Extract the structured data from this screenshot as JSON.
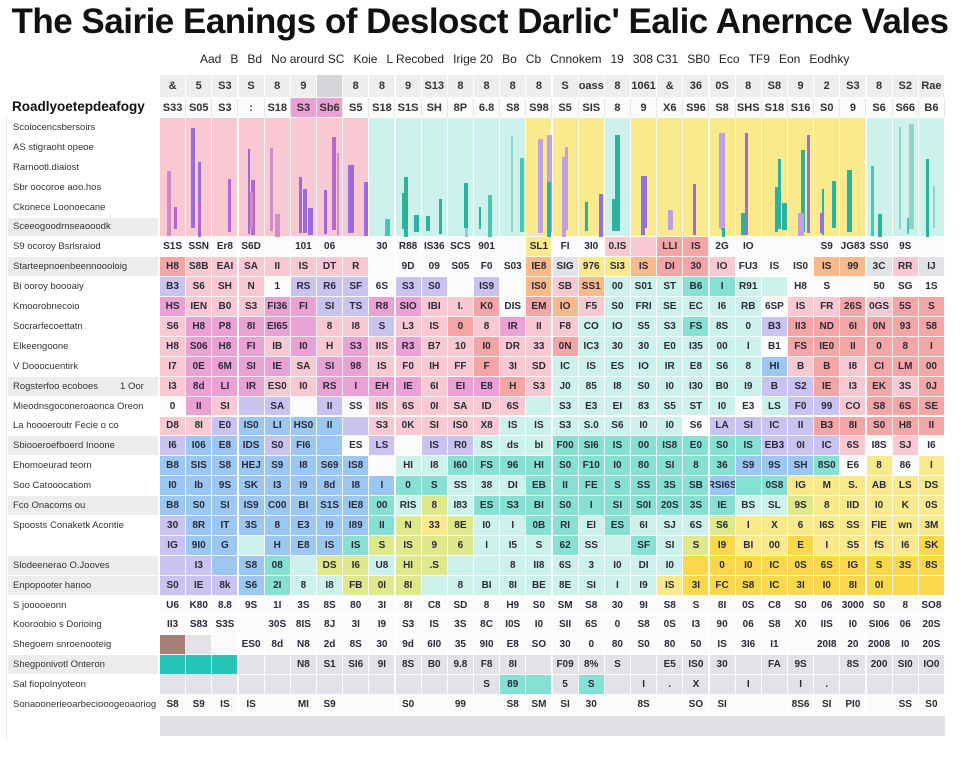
{
  "chart_data": {
    "type": "heatmap",
    "title": "The Sairie Eanings of Deslosct Darlic' Ealic Anernce Vales",
    "subheader": [
      "Aad",
      "B",
      "Bd",
      "No arourd SC",
      "Koie",
      "L Recobed",
      "Irige 20",
      "Bo",
      "Cb",
      "Cnnokem",
      "19",
      "308 C31",
      "SB0",
      "Eco",
      "TF9",
      "Eon",
      "Eodhky"
    ],
    "corner_label": "Roadlyoetepdeafogy",
    "header_row_1": [
      "&",
      "5",
      "S3",
      "S",
      "8",
      "9",
      "",
      "8",
      "8",
      "9",
      "S13",
      "8",
      "8",
      "8",
      "8",
      "S",
      "oass",
      "8",
      "1061",
      "&",
      "36",
      "0S",
      "8",
      "S8",
      "9",
      "2",
      "S3",
      "8",
      "S2",
      "Rae"
    ],
    "header_row_2": [
      "S33",
      "S05",
      "S3",
      ":",
      "S18",
      "S3",
      "Sb6",
      "S5",
      "S18",
      "S1S",
      "SH",
      "8P",
      "6.8",
      "S8",
      "S98",
      "S5",
      "SIS",
      "8",
      "9",
      "X6",
      "S96",
      "S8",
      "SHS",
      "S18",
      "S16",
      "S0",
      "9",
      "S6",
      "S66",
      "B6"
    ],
    "palette": {
      "P": "#f8c9d3",
      "R": "#f4a6a6",
      "M": "#eaa2d4",
      "V": "#c9c3ef",
      "B": "#9cc7f0",
      "C": "#86e0d4",
      "T": "#cdf1eb",
      "Y": "#fbe98e",
      "G": "#f9d84c",
      "L": "#dde98a",
      "W": "#fbfbfb",
      "g": "#e1e3e7",
      "O": "#f8b98c",
      "D": "#27c4ba",
      "K": "#a77f76"
    },
    "band_colors": "PPPPPPPPTTTTTTYYYTYYYYYYYYYTTT",
    "rows": [
      {
        "label": "Scoiocencsbersoirs",
        "shaded": false,
        "colors": "",
        "cells": ""
      },
      {
        "label": "AS stigraoht opeoe",
        "shaded": false,
        "colors": "",
        "cells": ""
      },
      {
        "label": "Rarnootl.diaiost",
        "shaded": false,
        "colors": "",
        "cells": ""
      },
      {
        "label": "Sbr oocoroe aoo.hos",
        "shaded": false,
        "colors": "",
        "cells": ""
      },
      {
        "label": "Ckonece Loonoecane",
        "shaded": false,
        "colors": "",
        "cells": ""
      },
      {
        "label": "Sceeogoodrnseaooodk",
        "shaded": true,
        "colors": "",
        "cells": ""
      },
      {
        "label": "S9 ocoroy Bsrlsraiod",
        "shaded": false,
        "colors": "WWWWWWWWWWWWWWYWWPPRRWWWWWWWWW",
        "cells": "S1S SSN Er8 S6D _ 101 06 _ 30 R88 IS36 SCS 901 _ SL1 FI 3I0 0.IS _ LLI IS 2G IO _ _ S9 JG83 SS0 9S"
      },
      {
        "label": "Starteepnoenbeennoooloig",
        "shaded": true,
        "colors": "RPPPPPPPWWWWWWOgYYORRPWWWOOgPg",
        "cells": "H8 S8B EAI SA II IS DT R _ 9D 09 S05 F0 S03 IE8 SIG 976 SI3 IS DI 30 IO FU3 IS IS0 IS 99 3C RR IJ"
      },
      {
        "label": "Bi ooroy boooaiy",
        "shaded": false,
        "colors": "VPPPWVVVWVVWVWOPOTTTCCTTWWWWWW",
        "cells": "B3 S6 SH N 1 RS R6 SF 6S S3 S0 _ IS9 _ IS0 SB SS1 00 S01 ST B6 I R91 _ H8 S _ 50 SG 1S"
      },
      {
        "label": "Kmoorobnecoio",
        "shaded": false,
        "colors": "MPPPMMVVMMPPRWROPTTTTTTWPPRPRR",
        "cells": "HS IEN B0 S3 FI36 FI SI TS R8 SIO IBI I. K0 DIS EM IO F5 S0 FRI SE EC I6 RB 6SP IS FR 26S 0GS 5S S"
      },
      {
        "label": "Socrarfecoettatn",
        "shaded": false,
        "colors": "PMMMMMPPVPPRPMPPTTTTCTTVRRRRRR",
        "cells": "S6 H8 P8 8I EI65 _ 8 I8 S L3 IS 0 8 IR II F8 CO IO S5 S3 FS 8S 0 B3 II3 ND 6I 0N 93 58"
      },
      {
        "label": "Elkeengoone",
        "shaded": false,
        "colors": "PMMMPMPMPMPPRPPRTTTTTTTWRRRRRR",
        "cells": "H8 S06 H8 FI IB I0 H S3 IIS R3 B7 10 I0 DR 33 0N IC3 30 30 E0 I35 00 I B1 FS IE0 II 0 8 I"
      },
      {
        "label": "V Dooocuentirk",
        "shaded": false,
        "colors": "PMMMMPMMPPPPRPPTTTTTTTTBPRPRRR",
        "cells": "I7 0E 6M SI IE SA SI 98 IS F0 IH FF F 3I SD IC IS ES IO IR E8 S6 8 HI B B I8 CI LM 00"
      },
      {
        "label": "Rogsterfoo ecoboes",
        "shaded": true,
        "extra": "1 Oor",
        "colors": "PMMMPPMMMMPMMRPTTTTTTTTVVRPRPR",
        "cells": "I3 8d LI IR ES0 I0 RS I EH IE 6I EI E8 H S3 J0 85 I8 S0 I0 I30 B0 I9 B S2 IE I3 EK 3S 0J"
      },
      {
        "label": "Mieodnsgoconeroaonca Oreon",
        "shaded": false,
        "colors": "WMPVVWVWPPPPPPTTTTTTTTWTVVPRRR",
        "cells": "0 II SI _ SA _ II SS IIS 6S 0I SA ID 6S _ S3 E3 EI 83 S5 ST I0 E3 LS F0 99 CO S8 6S SE"
      },
      {
        "label": "La hoooeroutr Fecie o co",
        "shaded": false,
        "colors": "PPVBBBBVPPPPPTTTTTTTWVVVVRRRRR",
        "cells": "D8 8I E0 IS0 LI HS0 II _ S3 0K SI IS0 X8 IS IS S3 S.0 S6 I0 I0 S6 LA SI IC II B3 8I S0 H8 II"
      },
      {
        "label": "Sbiooeroefboerd Inoone",
        "shaded": true,
        "colors": "VBBBVBBWVWVVTTTCCCCCCCCVVVPWPW",
        "cells": "I6 I06 E8 IDS S0 FI6 _ ES LS _ IS R0 8S ds bI F00 SI6 IS 00 IS8 E0 S0 IS EB3 0I IC 6S I8S SJ I6"
      },
      {
        "label": "Ehomoeurad teorn",
        "shaded": false,
        "colors": "BBBBBBBBWTTCCCCCCCCCCCBBBCWYWY",
        "cells": "B8 SIS S8 HEJ S9 I8 S69 IS8 _ HI I8 I60 FS 96 HI S0 F10 I0 80 SI 8 36 S9 9S SH 8S0 E6 8 86 I"
      },
      {
        "label": "Soo Catooocatiom",
        "shaded": false,
        "colors": "BBBBBBBBBCCTTTCCCCCCCBCCYYYYYY",
        "cells": "I0 Ib 9S SK I3 I9 8d I8 I 0 S SS 38 DI EB II FE S SS 3S SB RSI6S _ 0S8 IG M S. AB LS DS"
      },
      {
        "label": "Fco Onacoms ou",
        "shaded": true,
        "colors": "BBBBBBBBCTLTCCCCCCCCCCTTLYYYYY",
        "cells": "B8 S0 SI IS9 C00 BI S1S IE8 00 RIS 8 I83 ES S3 BI S0 I SI S0I 20S 3S IE BS SL 9S 8 IID I0 K 0S"
      },
      {
        "label": "Spoosts Conaketk Acontie",
        "shaded": false,
        "colors": "VBBBBBBBCLYLTTCCTCTTTLYYYYYYYY",
        "cells": "30 8R IT 3S 8 E3 I9 I89 II N 33 8E I0 I 0B RI EI ES 6I SJ 6S S6 I X 6 I6S SS FIE wn 3M"
      },
      {
        "label": "",
        "shaded": false,
        "colors": "VBBTBBBCLLLLTTTCTTCTLGYYGYYYYG",
        "cells": "IG 9I0 G _ H E8 IS IS S IS 9 6 I I5 S 62 SS _ SF SI S I9 BI 00 E I S5 fS I6 SK"
      },
      {
        "label": "Slodeenerao O.Jooves",
        "shaded": true,
        "colors": "VVBBCTLLTLLTTTTTTTTTGGGGGGGGGG",
        "cells": "_ I3 _ S8 08 _ DS I6 U8 HI .S _ _ 8 II8 6S 3 I0 DI I0 _ 0 I0 IC 0S 6S IG S 3S 8S"
      },
      {
        "label": "Enpopooter hanoo",
        "shaded": true,
        "colors": "VVVBCTTLLLTTTTTTTTTYGGGGGGGGGG",
        "cells": "S0 IE 8k S6 2I 8 I8 FB 0I 8I _ 8 BI 8I BE 8E SI I I9 IS 3I FC S8 IC 3I I0 8I 0I _ _"
      },
      {
        "label": "S jooooeonn",
        "shaded": false,
        "colors": "WWWWWWWWWWWWWWWWWWWWWWWWWWWWWW",
        "cells": "U6 K80 8.8 9S 1I 3S 8S 80 3I 8I C8 SD 8 H9 S0 SM S8 30 9I S8 S 8I 0S C8 S0 06 3000 S0 8 SO8"
      },
      {
        "label": "Kooroobio s Dorioing",
        "shaded": false,
        "colors": "WWWWWWWWWWWWWWWWWWWWWWWWWWWWWW",
        "cells": "II3 S83 S3S _ 30S 8IS 8J 3I I9 S3 IS 3S 8C I0S I0 SII 6S 0 S8 0S I3 90 06 S8 X0 IIS I0 SI06 06 20S"
      },
      {
        "label": "Shegoem snroenooteig",
        "shaded": false,
        "colors": "KgWWWWWWWWWWWWWWWWWWWWWWWWWWWW",
        "cells": "_ _ _ ES0 8d N8 2d 8S 30 9d 6I0 35 9I0 E8 SO 30 0 80 S0 80 50 IS 3I6 I1 _ 20I8 20 2008 I0 20S"
      },
      {
        "label": "Shegponivotl Onteron",
        "shaded": true,
        "colors": "DDDggggggggggggggggggggggggggg",
        "cells": "_ _ _ _ _ N8 S1 SI6 9I 8S B0 9.8 F8 8I _ F09 8% S _ E5 IS0 30 _ FA 9S _ 8S 200 SI0 IO0"
      },
      {
        "label": "Sal fiopolnyoteon",
        "shaded": false,
        "colors": "gggggggggggggCCgCgggggggggggggg",
        "cells": "_ _ _ _ _ _ _ _ _ _ _ _ S 89 _ 5 S _ I . X _ I _ I . _ _ _ _"
      },
      {
        "label": "Sonaoonerieoarbeciooogeoaoriog",
        "shaded": false,
        "colors": "WWWWWWWWWWWWWWWWWWWWWWWWWWWWWW",
        "cells": "S8 S9 IS IS _ MI S9 _ _ S0 _ 99 _ S8 SM SI 30 _ 8S _ SO SI _ _ 8S6 SI PI0 _ SS S0"
      }
    ]
  }
}
